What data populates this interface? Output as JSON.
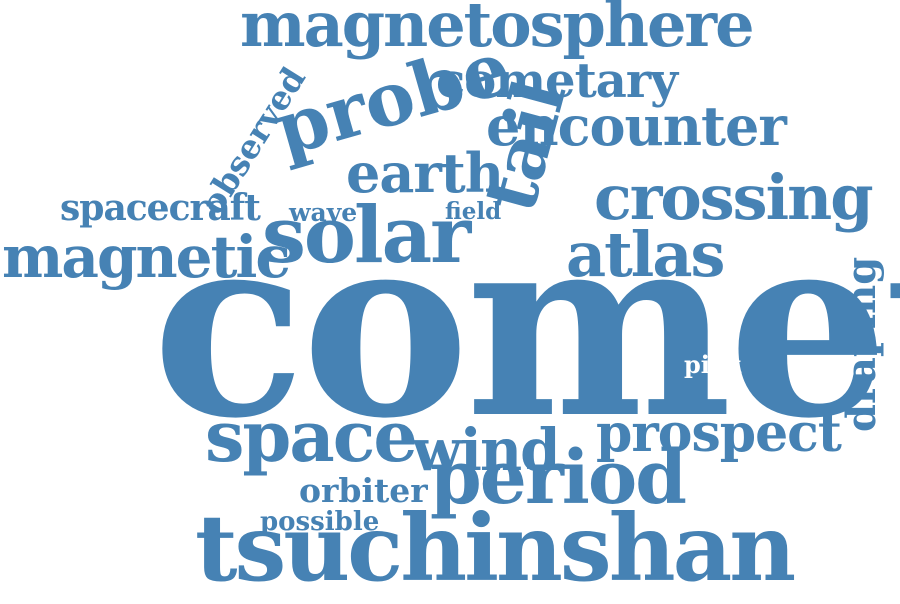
{
  "cloud": {
    "color": "#4682b4",
    "background": "#ffffff",
    "words": {
      "comet": "comet",
      "tsuchinshan": "tsuchinshan",
      "magnetosphere": "magnetosphere",
      "solar": "solar",
      "probe": "probe",
      "space": "space",
      "period": "period",
      "magnetic": "magnetic",
      "crossing": "crossing",
      "encounter": "encounter",
      "cometary": "cometary",
      "earth": "earth",
      "wind": "wind",
      "prospect": "prospect",
      "atlas": "atlas",
      "tail": "tail",
      "draping": "draping",
      "observed": "observed",
      "spacecraft": "spacecraft",
      "wave": "wave",
      "field": "field",
      "orbiter": "orbiter",
      "possible": "possible",
      "pick": "pick"
    }
  }
}
